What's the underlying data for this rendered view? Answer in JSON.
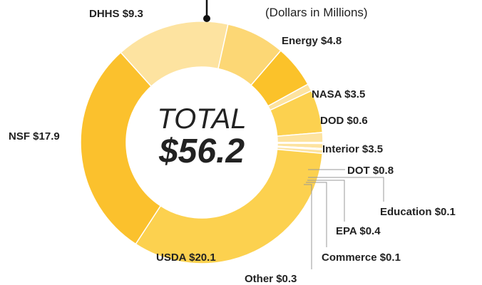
{
  "chart_data": {
    "type": "pie",
    "subtitle": "(Dollars in Millions)",
    "center_label": "TOTAL",
    "center_value": "$56.2",
    "categories": [
      "DHHS",
      "Energy",
      "NASA",
      "DOD",
      "Interior",
      "DOT",
      "Education",
      "EPA",
      "Commerce",
      "Other",
      "USDA",
      "NSF"
    ],
    "values": [
      9.3,
      4.8,
      3.5,
      0.6,
      3.5,
      0.8,
      0.1,
      0.4,
      0.1,
      0.3,
      20.1,
      17.9
    ],
    "value_labels": [
      "$9.3",
      "$4.8",
      "$3.5",
      "$0.6",
      "$3.5",
      "$0.8",
      "$0.1",
      "$0.4",
      "$0.1",
      "$0.3",
      "$20.1",
      "$17.9"
    ],
    "colors": [
      "#fde3a0",
      "#fcd775",
      "#fbc22a",
      "#fde3a0",
      "#fcd14f",
      "#fde3a0",
      "#fcd775",
      "#fde3a0",
      "#fcd14f",
      "#fde3a0",
      "#fcd14f",
      "#fbc12d"
    ]
  }
}
